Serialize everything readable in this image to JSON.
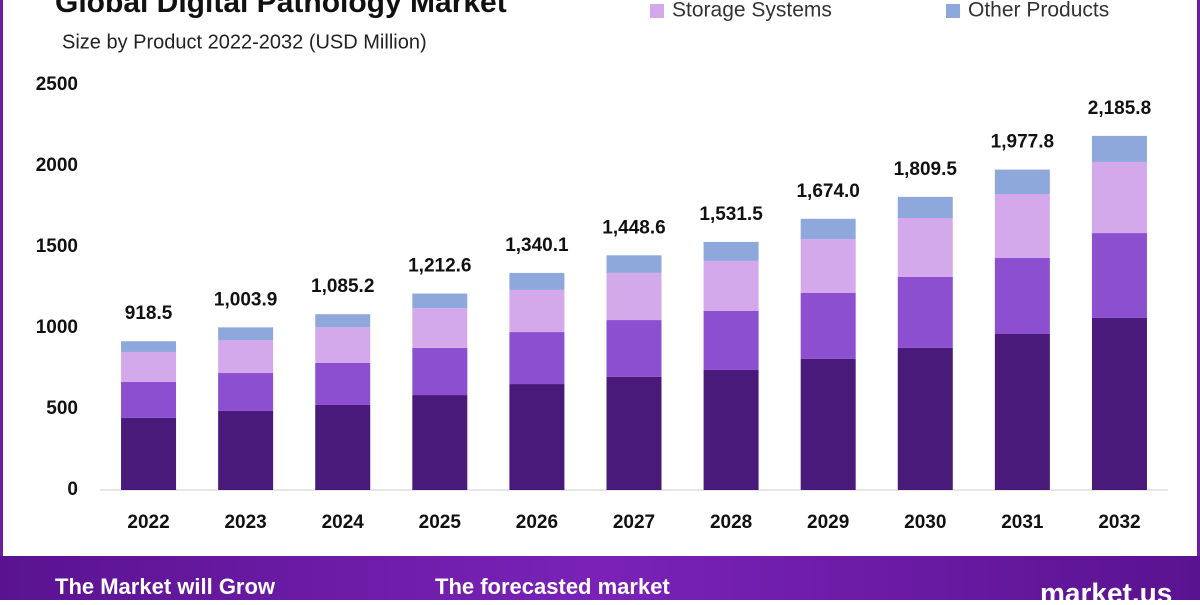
{
  "chart_data": {
    "type": "stacked-bar",
    "title": "Global Digital Pathology Market",
    "subtitle": "Size  by Product  2022-2032 (USD Million)",
    "categories": [
      "2022",
      "2023",
      "2024",
      "2025",
      "2026",
      "2027",
      "2028",
      "2029",
      "2030",
      "2031",
      "2032"
    ],
    "series": [
      {
        "color": "#4a1a7a",
        "values": [
          445,
          488,
          525,
          586,
          654,
          698,
          741,
          809,
          877,
          963,
          1062
        ]
      },
      {
        "color": "#8b4fcf",
        "values": [
          222,
          234,
          259,
          291,
          321,
          351,
          364,
          407,
          438,
          469,
          524
        ]
      },
      {
        "name": "Storage Systems",
        "color": "#d4a9ec",
        "values": [
          185,
          204,
          222,
          246,
          260,
          291,
          309,
          333,
          364,
          395,
          439
        ]
      },
      {
        "name": "Other Products",
        "color": "#8fa8dc",
        "values": [
          66.5,
          77.9,
          79.2,
          89.6,
          105.1,
          108.6,
          117.5,
          125,
          130.5,
          150.8,
          160.8
        ]
      }
    ],
    "totals": {
      "values": [
        918.5,
        1003.9,
        1085.2,
        1212.6,
        1340.1,
        1448.6,
        1531.5,
        1674.0,
        1809.5,
        1977.8,
        2185.8
      ],
      "value_labels": [
        "918.5",
        "1,003.9",
        "1,085.2",
        "1,212.6",
        "1,340.1",
        "1,448.6",
        "1,531.5",
        "1,674.0",
        "1,809.5",
        "1,977.8",
        "2,185.8"
      ]
    },
    "ylim": [
      0,
      2500
    ],
    "yticks": [
      0,
      500,
      1000,
      1500,
      2000,
      2500
    ],
    "banner": {
      "grow": "The Market will Grow",
      "forecast": "The forecasted market",
      "brand": "market.us"
    }
  }
}
